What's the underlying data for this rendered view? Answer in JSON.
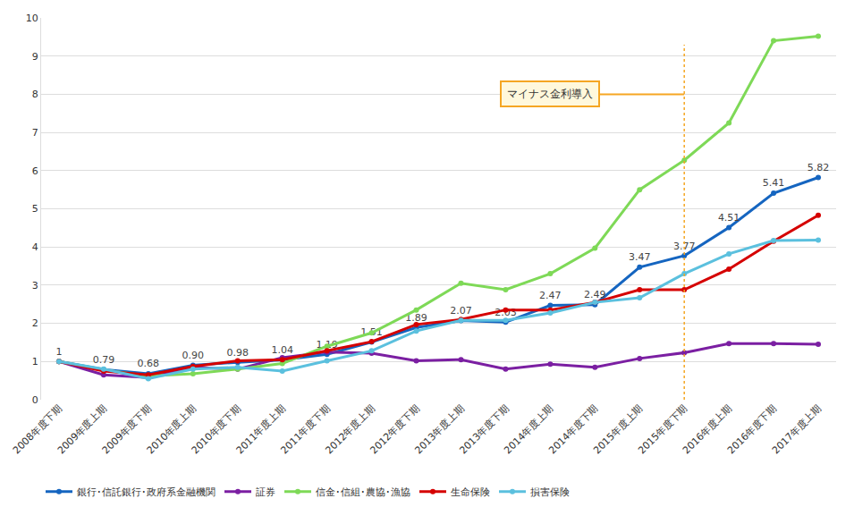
{
  "chart_data": {
    "type": "line",
    "categories": [
      "2008年度下期",
      "2009年度上期",
      "2009年度下期",
      "2010年度上期",
      "2010年度下期",
      "2011年度上期",
      "2011年度下期",
      "2012年度上期",
      "2012年度下期",
      "2013年度上期",
      "2013年度下期",
      "2014年度上期",
      "2014年度下期",
      "2015年度上期",
      "2015年度下期",
      "2016年度上期",
      "2016年度下期",
      "2017年度上期"
    ],
    "series": [
      {
        "name": "銀行･信託銀行･政府系金融機関",
        "color": "#1565c0",
        "marker": "circle",
        "data_labels": true,
        "values": [
          1,
          0.79,
          0.68,
          0.9,
          0.98,
          1.04,
          1.19,
          1.51,
          1.89,
          2.07,
          2.03,
          2.47,
          2.49,
          3.47,
          3.77,
          4.51,
          5.41,
          5.82
        ],
        "value_labels": [
          "1",
          "0.79",
          "0.68",
          "0.90",
          "0.98",
          "1.04",
          "1.19",
          "1.51",
          "1.89",
          "2.07",
          "2.03",
          "2.47",
          "2.49",
          "3.47",
          "3.77",
          "4.51",
          "5.41",
          "5.82"
        ]
      },
      {
        "name": "証券",
        "color": "#7b1fa2",
        "marker": "circle",
        "values": [
          1,
          0.65,
          0.58,
          0.85,
          0.8,
          1.1,
          1.25,
          1.22,
          1.02,
          1.05,
          0.8,
          0.93,
          0.85,
          1.08,
          1.23,
          1.47,
          1.47,
          1.45
        ]
      },
      {
        "name": "信金･信組･農協･漁協",
        "color": "#7ed957",
        "marker": "circle",
        "values": [
          1,
          0.78,
          0.62,
          0.68,
          0.8,
          0.95,
          1.4,
          1.75,
          2.35,
          3.05,
          2.88,
          3.3,
          3.97,
          5.5,
          6.27,
          7.25,
          9.4,
          9.52
        ]
      },
      {
        "name": "生命保険",
        "color": "#d50000",
        "marker": "circle",
        "values": [
          1,
          0.75,
          0.65,
          0.87,
          1.02,
          1.05,
          1.28,
          1.52,
          1.97,
          2.1,
          2.35,
          2.35,
          2.55,
          2.88,
          2.88,
          3.42,
          4.15,
          4.83
        ]
      },
      {
        "name": "損害保険",
        "color": "#5bc0de",
        "marker": "circle",
        "values": [
          1,
          0.8,
          0.55,
          0.8,
          0.85,
          0.75,
          1.02,
          1.28,
          1.8,
          2.08,
          2.08,
          2.27,
          2.55,
          2.67,
          3.3,
          3.82,
          4.17,
          4.18
        ]
      }
    ],
    "annotations": [
      {
        "text": "マイナス金利導入",
        "x": "2015年度下期"
      }
    ],
    "ylim": [
      0,
      10
    ],
    "yticks": [
      0,
      1,
      2,
      3,
      4,
      5,
      6,
      7,
      8,
      9,
      10
    ],
    "grid": true,
    "legend": "bottom"
  }
}
